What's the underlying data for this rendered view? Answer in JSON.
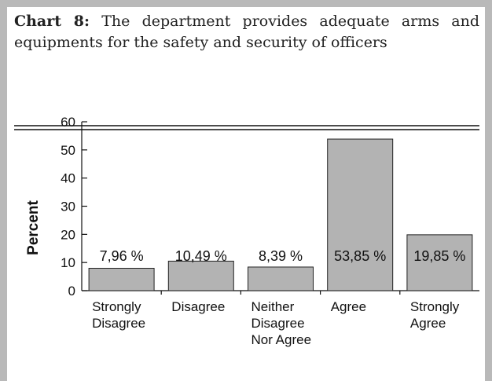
{
  "chart_data": {
    "type": "bar",
    "title_label": "Chart 8:",
    "title": "The department provides adequate arms and equipments for the safety and security of officers",
    "y_label": "Percent",
    "categories": [
      "Strongly Disagree",
      "Disagree",
      "Neither Disagree Nor Agree",
      "Agree",
      "Strongly Agree"
    ],
    "values": [
      7.96,
      10.49,
      8.39,
      53.85,
      19.85
    ],
    "value_labels": [
      "7,96 %",
      "10,49 %",
      "8,39 %",
      "53,85 %",
      "19,85 %"
    ],
    "color": "#b3b3b3",
    "ylim": [
      0,
      60
    ],
    "yticks": [
      0,
      10,
      20,
      30,
      40,
      50,
      60
    ],
    "grid": false
  }
}
